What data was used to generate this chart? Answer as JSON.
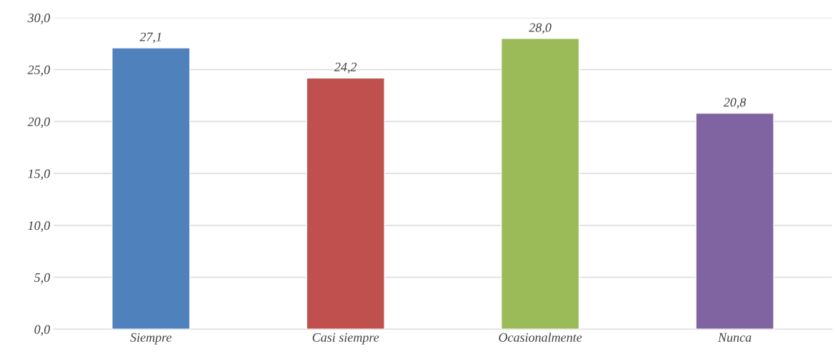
{
  "chart_data": {
    "type": "bar",
    "categories": [
      "Siempre",
      "Casi siempre",
      "Ocasionalmente",
      "Nunca"
    ],
    "values": [
      27.1,
      24.2,
      28.0,
      20.8
    ],
    "colors": [
      "#4f81bd",
      "#c0504d",
      "#9bbb59",
      "#8064a2"
    ],
    "value_labels": [
      "27,1",
      "24,2",
      "28,0",
      "20,8"
    ],
    "ylim": [
      0,
      30
    ],
    "yticks": [
      {
        "value": 0,
        "label": "0,0"
      },
      {
        "value": 5,
        "label": "5,0"
      },
      {
        "value": 10,
        "label": "10,0"
      },
      {
        "value": 15,
        "label": "15,0"
      },
      {
        "value": 20,
        "label": "20,0"
      },
      {
        "value": 25,
        "label": "25,0"
      },
      {
        "value": 30,
        "label": "30,0"
      }
    ],
    "grid": "y"
  }
}
